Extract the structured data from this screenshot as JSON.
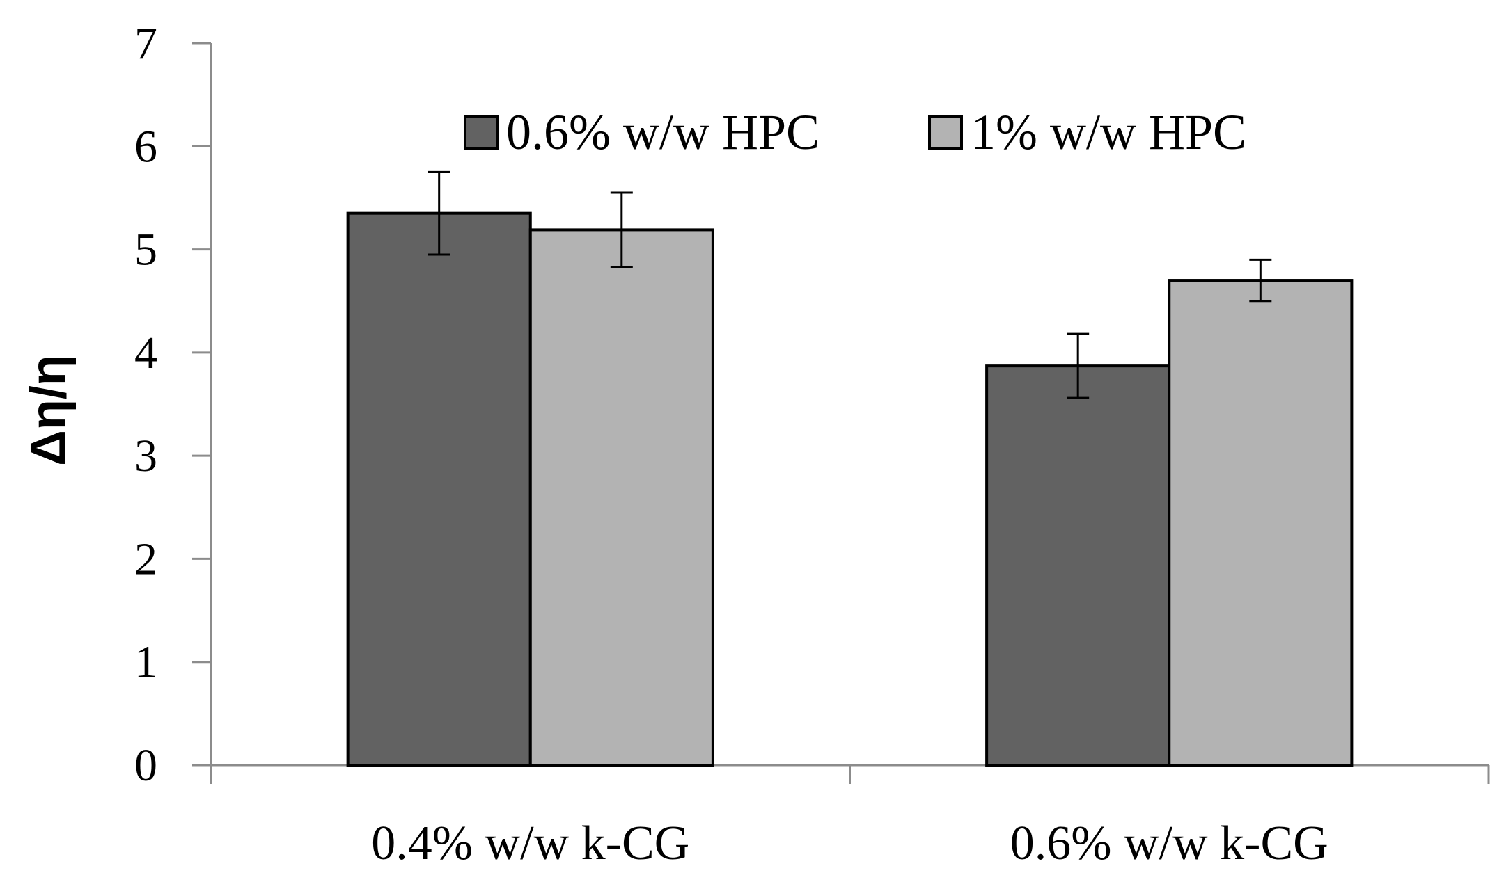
{
  "chart_data": {
    "type": "bar",
    "title": "",
    "xlabel": "",
    "ylabel": "Δη/η",
    "categories": [
      "0.4% w/w k-CG",
      "0.6% w/w k-CG"
    ],
    "series": [
      {
        "name": "0.6% w/w HPC",
        "values": [
          5.35,
          3.87
        ],
        "errors": [
          0.4,
          0.31
        ],
        "color": "#626262"
      },
      {
        "name": "1% w/w HPC",
        "values": [
          5.19,
          4.7
        ],
        "errors": [
          0.36,
          0.2
        ],
        "color": "#b3b3b3"
      }
    ],
    "ylim": [
      0,
      7
    ],
    "yticks": [
      "0",
      "1",
      "2",
      "3",
      "4",
      "5",
      "6",
      "7"
    ],
    "grid": false,
    "legend_position": "top-center",
    "colors": {
      "axis": "#8c8c8c",
      "bar_stroke": "#000000",
      "error_bar": "#000000"
    }
  }
}
